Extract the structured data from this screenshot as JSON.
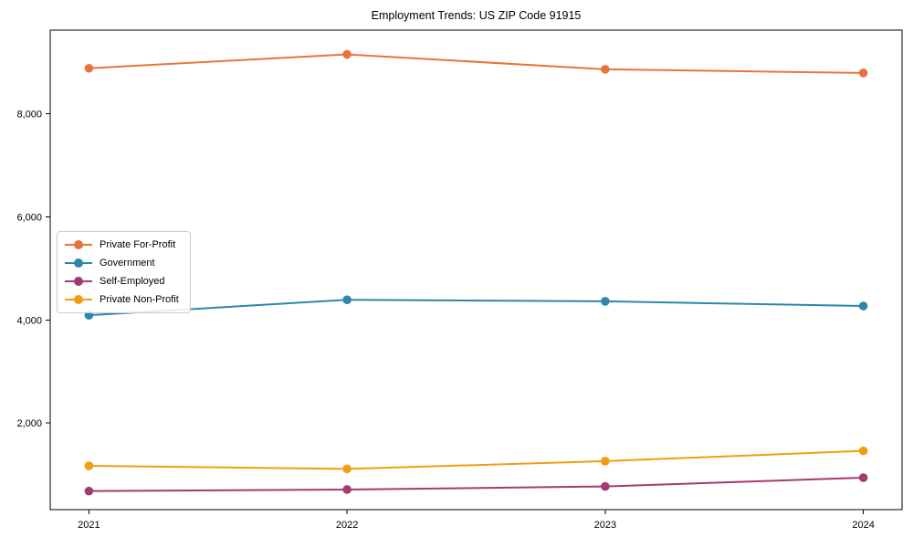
{
  "chart_data": {
    "type": "line",
    "title": "Employment Trends: US ZIP Code 91915",
    "xlabel": "",
    "ylabel": "",
    "x": [
      2021,
      2022,
      2023,
      2024
    ],
    "xtick_labels": [
      "2021",
      "2022",
      "2023",
      "2024"
    ],
    "yticks": [
      2000,
      4000,
      6000,
      8000
    ],
    "ytick_labels": [
      "2,000",
      "4,000",
      "6,000",
      "8,000"
    ],
    "xlim": [
      2020.85,
      2024.15
    ],
    "ylim": [
      320,
      9620
    ],
    "grid": false,
    "marker": "circle",
    "legend_position": "center-left",
    "series": [
      {
        "name": "Private For-Profit",
        "color": "#E8743B",
        "values": [
          8880,
          9150,
          8860,
          8790
        ]
      },
      {
        "name": "Government",
        "color": "#2E86AB",
        "values": [
          4090,
          4390,
          4360,
          4270
        ]
      },
      {
        "name": "Self-Employed",
        "color": "#A23B72",
        "values": [
          680,
          710,
          770,
          940
        ]
      },
      {
        "name": "Private Non-Profit",
        "color": "#F39C12",
        "values": [
          1170,
          1110,
          1260,
          1460
        ]
      }
    ],
    "axis_color": "#000000"
  }
}
